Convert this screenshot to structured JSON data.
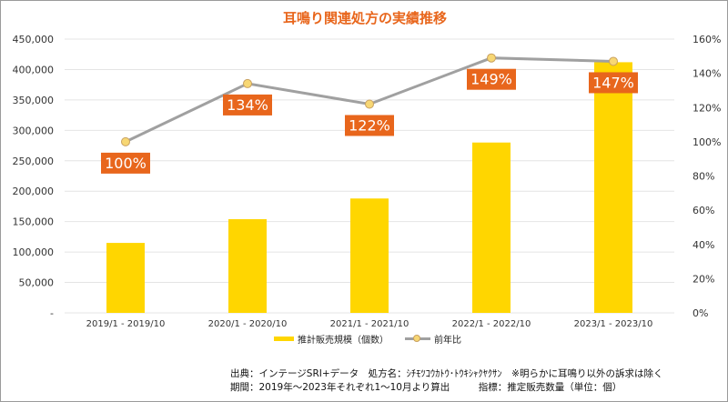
{
  "chart_data": {
    "type": "bar+line",
    "title": "耳鳴り関連処方の実績推移",
    "categories": [
      "2019/1 - 2019/10",
      "2020/1 - 2020/10",
      "2021/1 - 2021/10",
      "2022/1 - 2022/10",
      "2023/1 - 2023/10"
    ],
    "series": [
      {
        "name": "推計販売規模（個数）",
        "type": "bar",
        "axis": "left",
        "color": "#ffd600",
        "values": [
          115000,
          154000,
          188000,
          280000,
          412000
        ]
      },
      {
        "name": "前年比",
        "type": "line",
        "axis": "right",
        "color": "#a0a0a0",
        "values": [
          100,
          134,
          122,
          149,
          147
        ],
        "labels": [
          "100%",
          "134%",
          "122%",
          "149%",
          "147%"
        ]
      }
    ],
    "left_axis": {
      "ylim": [
        0,
        450000
      ],
      "ticks": [
        "-",
        "50,000",
        "100,000",
        "150,000",
        "200,000",
        "250,000",
        "300,000",
        "350,000",
        "400,000",
        "450,000"
      ]
    },
    "right_axis": {
      "ylim": [
        0,
        160
      ],
      "ticks": [
        "0%",
        "20%",
        "40%",
        "60%",
        "80%",
        "100%",
        "120%",
        "140%",
        "160%"
      ]
    },
    "label_color": "#e8661c",
    "legend": "bottom"
  },
  "notes": {
    "line1": "出典：インテージSRI+データ　処方名：ｼﾁﾓﾂｺｳｶﾄｳ･ﾄｳｷｼｬｸﾔｸｻﾝ　※明らかに耳鳴り以外の訴求は除く",
    "line2": "期間：2019年～2023年それぞれ1～10月より算出　　　指標：推定販売数量（単位：個）"
  }
}
